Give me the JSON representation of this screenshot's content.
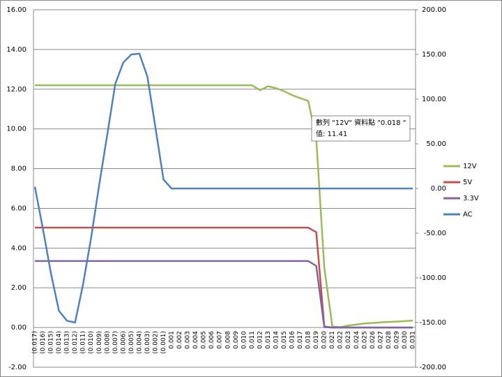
{
  "chart_data": {
    "type": "line",
    "categories": [
      "(0.017)",
      "(0.016)",
      "(0.015)",
      "(0.014)",
      "(0.013)",
      "(0.012)",
      "(0.011)",
      "(0.010)",
      "(0.009)",
      "(0.008)",
      "(0.007)",
      "(0.006)",
      "(0.005)",
      "(0.004)",
      "(0.003)",
      "(0.002)",
      "(0.001)",
      "0.001",
      "0.002",
      "0.003",
      "0.004",
      "0.005",
      "0.006",
      "0.007",
      "0.008",
      "0.009",
      "0.010",
      "0.011",
      "0.012",
      "0.013",
      "0.014",
      "0.015",
      "0.016",
      "0.017",
      "0.018",
      "0.019",
      "0.020",
      "0.021",
      "0.022",
      "0.023",
      "0.024",
      "0.025",
      "0.026",
      "0.027",
      "0.028",
      "0.029",
      "0.030",
      "0.031"
    ],
    "series": [
      {
        "name": "12V",
        "color": "#9bbb59",
        "values": [
          12.2,
          12.2,
          12.2,
          12.2,
          12.2,
          12.2,
          12.2,
          12.2,
          12.2,
          12.2,
          12.2,
          12.2,
          12.2,
          12.2,
          12.2,
          12.2,
          12.2,
          12.2,
          12.2,
          12.2,
          12.2,
          12.2,
          12.2,
          12.2,
          12.2,
          12.2,
          12.2,
          12.2,
          11.95,
          12.15,
          12.05,
          11.9,
          11.7,
          11.55,
          11.41,
          9.5,
          3.0,
          0.05,
          0.02,
          0.1,
          0.15,
          0.2,
          0.23,
          0.26,
          0.28,
          0.3,
          0.32,
          0.35
        ]
      },
      {
        "name": "5V",
        "color": "#c0504d",
        "values": [
          5.03,
          5.03,
          5.03,
          5.03,
          5.03,
          5.03,
          5.03,
          5.03,
          5.03,
          5.03,
          5.03,
          5.03,
          5.03,
          5.03,
          5.03,
          5.03,
          5.03,
          5.03,
          5.03,
          5.03,
          5.03,
          5.03,
          5.03,
          5.03,
          5.03,
          5.03,
          5.03,
          5.03,
          5.03,
          5.03,
          5.03,
          5.03,
          5.03,
          5.03,
          5.03,
          4.8,
          0.05,
          0,
          0,
          0,
          0,
          0,
          0,
          0,
          0,
          0,
          0,
          0
        ]
      },
      {
        "name": "3.3V",
        "color": "#8064a2",
        "values": [
          3.35,
          3.35,
          3.35,
          3.35,
          3.35,
          3.35,
          3.35,
          3.35,
          3.35,
          3.35,
          3.35,
          3.35,
          3.35,
          3.35,
          3.35,
          3.35,
          3.35,
          3.35,
          3.35,
          3.35,
          3.35,
          3.35,
          3.35,
          3.35,
          3.35,
          3.35,
          3.35,
          3.35,
          3.35,
          3.35,
          3.35,
          3.35,
          3.35,
          3.35,
          3.35,
          3.1,
          0.02,
          0,
          0,
          0,
          0,
          0,
          0,
          0,
          0,
          0,
          0,
          0
        ]
      },
      {
        "name": "AC",
        "color": "#4f81bd",
        "axis": "y2",
        "values": [
          2,
          -45,
          -95,
          -137,
          -148,
          -150,
          -107,
          -55,
          4,
          60,
          117,
          141,
          150,
          151,
          125,
          68,
          10,
          0,
          0,
          0,
          0,
          0,
          0,
          0,
          0,
          0,
          0,
          0,
          0,
          0,
          0,
          0,
          0,
          0,
          0,
          0,
          0,
          0,
          0,
          0,
          0,
          0,
          0,
          0,
          0,
          0,
          0,
          0
        ]
      }
    ],
    "ylim": [
      -2,
      16
    ],
    "yticks": [
      {
        "value": -2,
        "label": "-2.00"
      },
      {
        "value": 0,
        "label": "0.00"
      },
      {
        "value": 2,
        "label": "2.00"
      },
      {
        "value": 4,
        "label": "4.00"
      },
      {
        "value": 6,
        "label": "6.00"
      },
      {
        "value": 8,
        "label": "8.00"
      },
      {
        "value": 10,
        "label": "10.00"
      },
      {
        "value": 12,
        "label": "12.00"
      },
      {
        "value": 14,
        "label": "14.00"
      },
      {
        "value": 16,
        "label": "16.00"
      }
    ],
    "y2lim": [
      -200,
      200
    ],
    "y2ticks": [
      {
        "value": -200,
        "label": "-200.00"
      },
      {
        "value": -150,
        "label": "-150.00"
      },
      {
        "value": -100,
        "label": "-100.00"
      },
      {
        "value": -50,
        "label": "-50.00"
      },
      {
        "value": 0,
        "label": "0.00"
      },
      {
        "value": 50,
        "label": "50.00"
      },
      {
        "value": 100,
        "label": "100.00"
      },
      {
        "value": 150,
        "label": "150.00"
      },
      {
        "value": 200,
        "label": "200.00"
      }
    ],
    "grid": true,
    "legend": "right",
    "tooltip": [
      "數列 \"12V\" 資料點 \"0.018 \"",
      "值: 11.41"
    ]
  }
}
